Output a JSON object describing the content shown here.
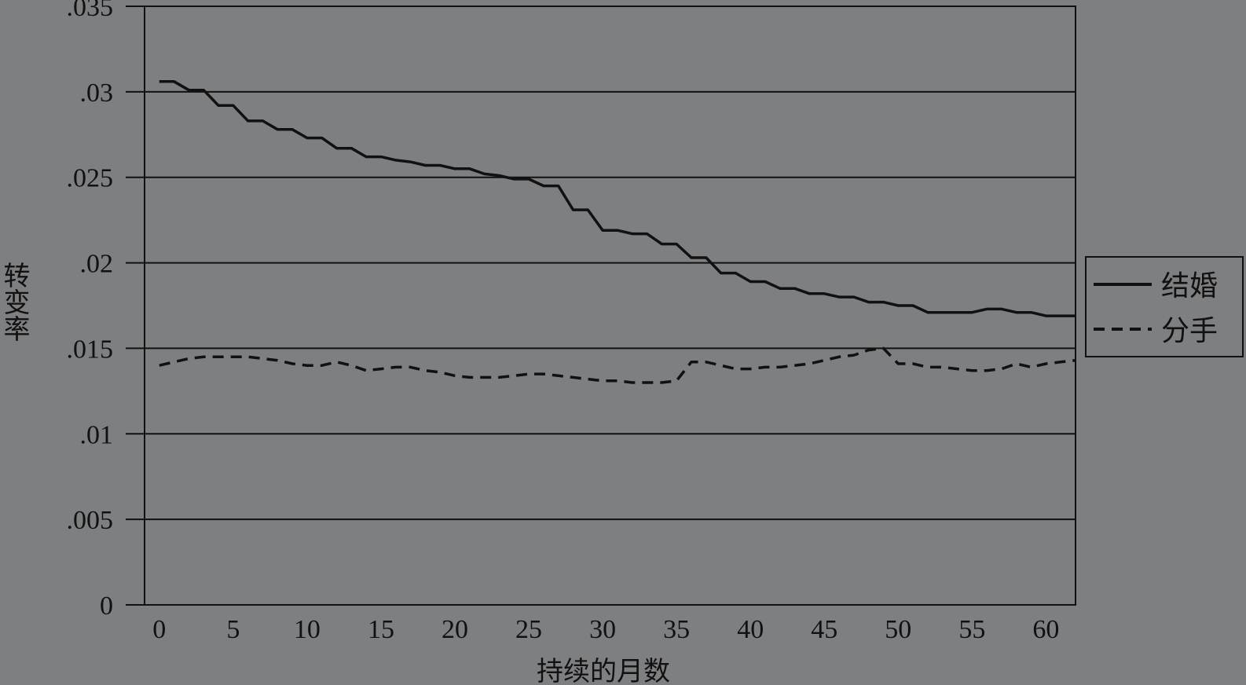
{
  "chart_data": {
    "type": "line",
    "title": "",
    "xlabel": "持续的月数",
    "ylabel": "转变率",
    "xlim": [
      -1,
      62
    ],
    "ylim": [
      0,
      0.035
    ],
    "x_ticks": [
      0,
      5,
      10,
      15,
      20,
      25,
      30,
      35,
      40,
      45,
      50,
      55,
      60
    ],
    "x_tick_labels": [
      "0",
      "5",
      "10",
      "15",
      "20",
      "25",
      "30",
      "35",
      "40",
      "45",
      "50",
      "55",
      "60"
    ],
    "y_ticks": [
      0,
      0.005,
      0.01,
      0.015,
      0.02,
      0.025,
      0.03,
      0.035
    ],
    "y_tick_labels": [
      "0",
      ".005",
      ".01",
      ".015",
      ".02",
      ".025",
      ".03",
      ".035"
    ],
    "grid": "horizontal",
    "legend_position": "right",
    "series": [
      {
        "name": "结婚",
        "style": "solid",
        "color": "#111111",
        "x": [
          0,
          1,
          2,
          3,
          4,
          5,
          6,
          7,
          8,
          9,
          10,
          11,
          12,
          13,
          14,
          15,
          16,
          17,
          18,
          19,
          20,
          21,
          22,
          23,
          24,
          25,
          26,
          27,
          28,
          29,
          30,
          31,
          32,
          33,
          34,
          35,
          36,
          37,
          38,
          39,
          40,
          41,
          42,
          43,
          44,
          45,
          46,
          47,
          48,
          49,
          50,
          51,
          52,
          53,
          54,
          55,
          56,
          57,
          58,
          59,
          60,
          61,
          62
        ],
        "y": [
          0.0306,
          0.0306,
          0.0301,
          0.0301,
          0.0292,
          0.0292,
          0.0283,
          0.0283,
          0.0278,
          0.0278,
          0.0273,
          0.0273,
          0.0267,
          0.0267,
          0.0262,
          0.0262,
          0.026,
          0.0259,
          0.0257,
          0.0257,
          0.0255,
          0.0255,
          0.0252,
          0.0251,
          0.0249,
          0.0249,
          0.0245,
          0.0245,
          0.0231,
          0.0231,
          0.0219,
          0.0219,
          0.0217,
          0.0217,
          0.0211,
          0.0211,
          0.0203,
          0.0203,
          0.0194,
          0.0194,
          0.0189,
          0.0189,
          0.0185,
          0.0185,
          0.0182,
          0.0182,
          0.018,
          0.018,
          0.0177,
          0.0177,
          0.0175,
          0.0175,
          0.0171,
          0.0171,
          0.0171,
          0.0171,
          0.0173,
          0.0173,
          0.0171,
          0.0171,
          0.0169,
          0.0169,
          0.0169
        ]
      },
      {
        "name": "分手",
        "style": "dashed",
        "color": "#111111",
        "x": [
          0,
          1,
          2,
          3,
          4,
          5,
          6,
          7,
          8,
          9,
          10,
          11,
          12,
          13,
          14,
          15,
          16,
          17,
          18,
          19,
          20,
          21,
          22,
          23,
          24,
          25,
          26,
          27,
          28,
          29,
          30,
          31,
          32,
          33,
          34,
          35,
          36,
          37,
          38,
          39,
          40,
          41,
          42,
          43,
          44,
          45,
          46,
          47,
          48,
          49,
          50,
          51,
          52,
          53,
          54,
          55,
          56,
          57,
          58,
          59,
          60,
          61,
          62
        ],
        "y": [
          0.014,
          0.0142,
          0.0144,
          0.0145,
          0.0145,
          0.0145,
          0.0145,
          0.0144,
          0.0143,
          0.0141,
          0.014,
          0.014,
          0.0142,
          0.014,
          0.0137,
          0.0138,
          0.0139,
          0.0139,
          0.0137,
          0.0136,
          0.0134,
          0.0133,
          0.0133,
          0.0133,
          0.0134,
          0.0135,
          0.0135,
          0.0134,
          0.0133,
          0.0132,
          0.0131,
          0.0131,
          0.013,
          0.013,
          0.013,
          0.0131,
          0.0142,
          0.0142,
          0.014,
          0.0138,
          0.0138,
          0.0139,
          0.0139,
          0.014,
          0.0141,
          0.0143,
          0.0145,
          0.0146,
          0.0149,
          0.015,
          0.0141,
          0.0141,
          0.0139,
          0.0139,
          0.0138,
          0.0137,
          0.0137,
          0.0138,
          0.0141,
          0.0139,
          0.0141,
          0.0142,
          0.0143
        ]
      }
    ]
  }
}
